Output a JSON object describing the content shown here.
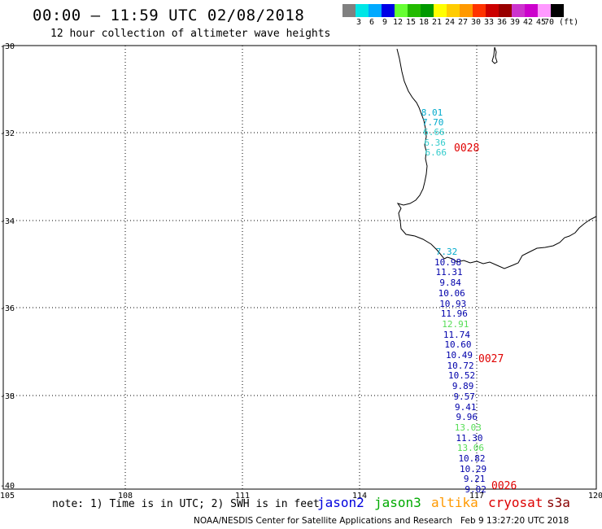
{
  "header": {
    "title": "00:00 – 11:59 UTC 02/08/2018",
    "subtitle": "12 hour collection of altimeter wave heights"
  },
  "colorbar": {
    "colors": [
      "#808080",
      "#00e6e6",
      "#00aaff",
      "#0000e6",
      "#66ff33",
      "#22bb00",
      "#009900",
      "#ffff00",
      "#ffcc00",
      "#ff9900",
      "#ff3300",
      "#cc0000",
      "#990000",
      "#cc33cc",
      "#cc00cc",
      "#ff99ff",
      "#000000"
    ],
    "labels": [
      "3",
      "6",
      "9",
      "12",
      "15",
      "18",
      "21",
      "24",
      "27",
      "30",
      "33",
      "36",
      "39",
      "42",
      "45",
      "70 (ft)"
    ]
  },
  "axes": {
    "lat_labels": [
      "-30",
      "-32",
      "-34",
      "-36",
      "-38",
      "-40"
    ],
    "lon_labels": [
      "105",
      "108",
      "111",
      "114",
      "117",
      "120"
    ]
  },
  "tracks": [
    {
      "satellite": "jason2-cyan",
      "time_label": "0028",
      "points": [
        {
          "value": "8.01",
          "color": "#00aacc"
        },
        {
          "value": "7.70",
          "color": "#00aacc"
        },
        {
          "value": "6.66",
          "color": "#33cccc"
        },
        {
          "value": "6.36",
          "color": "#33cccc"
        },
        {
          "value": "6.66",
          "color": "#33cccc"
        }
      ]
    },
    {
      "satellite": "mixed",
      "time_label": "0027",
      "points": [
        {
          "value": "7.32",
          "color": "#00aacc"
        },
        {
          "value": "10.98",
          "color": "#0000aa"
        },
        {
          "value": "11.31",
          "color": "#0000aa"
        },
        {
          "value": "9.84",
          "color": "#0000aa"
        },
        {
          "value": "10.06",
          "color": "#0000aa"
        },
        {
          "value": "10.93",
          "color": "#0000aa"
        },
        {
          "value": "11.96",
          "color": "#0000aa"
        },
        {
          "value": "12.91",
          "color": "#55dd55"
        },
        {
          "value": "11.74",
          "color": "#0000aa"
        },
        {
          "value": "10.60",
          "color": "#0000aa"
        },
        {
          "value": "10.49",
          "color": "#0000aa"
        },
        {
          "value": "10.72",
          "color": "#0000aa"
        },
        {
          "value": "10.52",
          "color": "#0000aa"
        },
        {
          "value": "9.89",
          "color": "#0000aa"
        },
        {
          "value": "9.57",
          "color": "#0000aa"
        },
        {
          "value": "9.41",
          "color": "#0000aa"
        },
        {
          "value": "9.96",
          "color": "#0000aa"
        },
        {
          "value": "13.03",
          "color": "#55dd55"
        },
        {
          "value": "11.30",
          "color": "#0000aa"
        },
        {
          "value": "13.06",
          "color": "#55dd55"
        },
        {
          "value": "10.82",
          "color": "#0000aa"
        },
        {
          "value": "10.29",
          "color": "#0000aa"
        },
        {
          "value": "9.21",
          "color": "#0000aa"
        },
        {
          "value": "9.02",
          "color": "#0000aa"
        }
      ]
    },
    {
      "satellite": "mixed-end",
      "time_label": "0026",
      "points": []
    }
  ],
  "legend": {
    "note": "note: 1) Time is in UTC; 2) SWH is in feet",
    "satellites": [
      {
        "name": "jason2",
        "color": "#0000dd"
      },
      {
        "name": "jason3",
        "color": "#00aa00"
      },
      {
        "name": "altika",
        "color": "#ff9900"
      },
      {
        "name": "cryosat",
        "color": "#dd0000"
      },
      {
        "name": "s3a",
        "color": "#880000"
      }
    ]
  },
  "footer": {
    "credit": "NOAA/NESDIS Center for Satellite Applications and Research",
    "timestamp": "Feb  9 13:27:20 UTC 2018"
  }
}
